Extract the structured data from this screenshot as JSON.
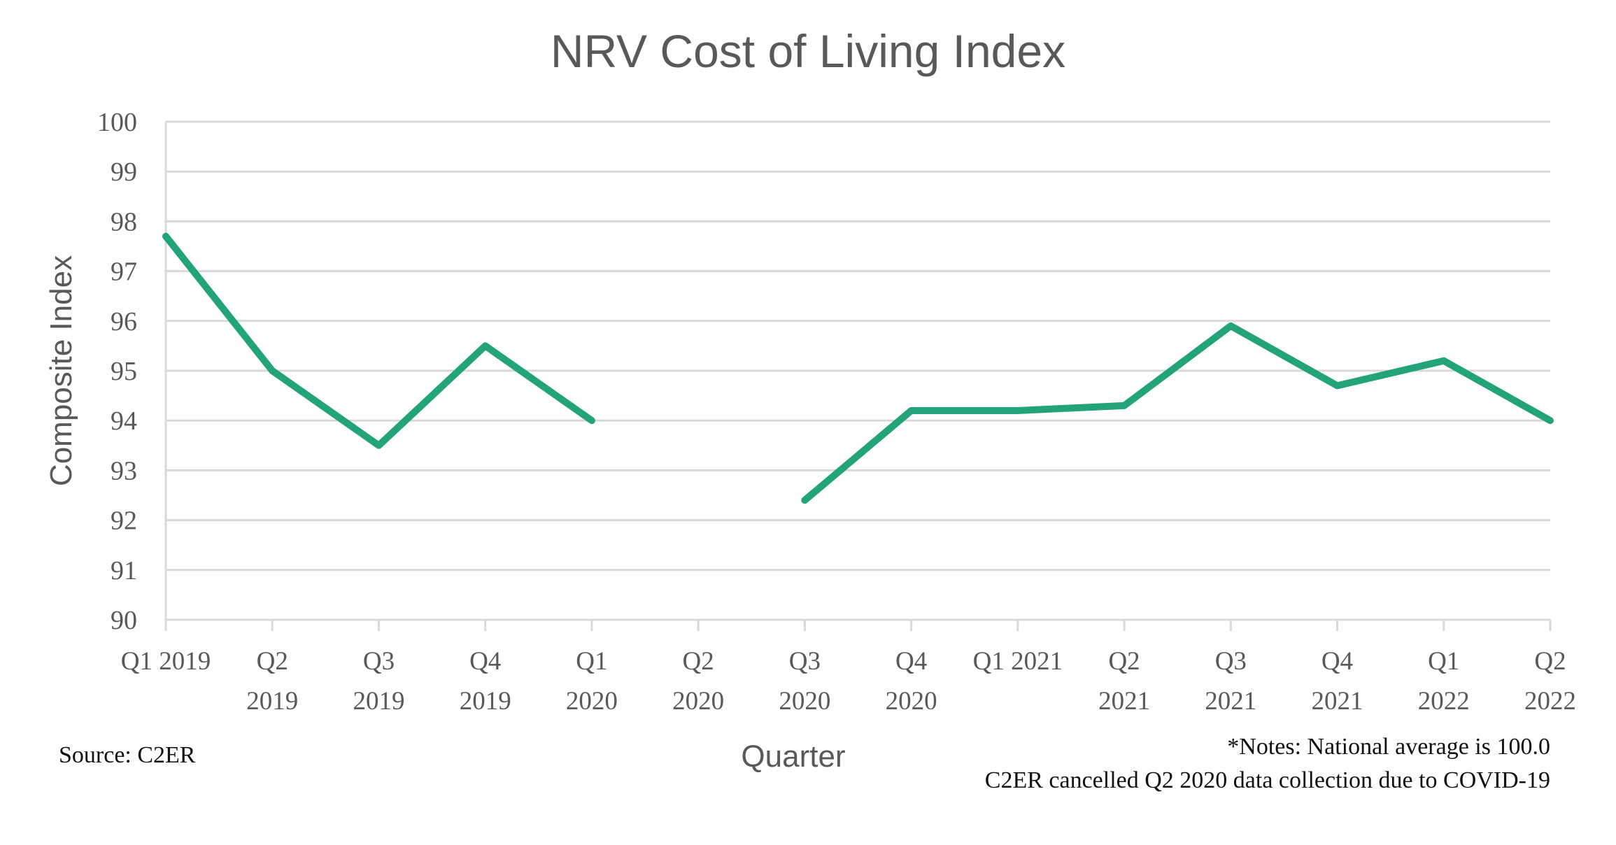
{
  "colors": {
    "line": "#22a37a",
    "grid": "#d9d9d9",
    "text": "#595959",
    "note_text": "#111111"
  },
  "chart_data": {
    "type": "line",
    "title": "NRV Cost of Living Index",
    "xlabel": "Quarter",
    "ylabel": "Composite Index",
    "ylim": [
      90,
      100
    ],
    "yticks": [
      90,
      91,
      92,
      93,
      94,
      95,
      96,
      97,
      98,
      99,
      100
    ],
    "grid": true,
    "legend": "none",
    "categories": [
      [
        "Q1 2019"
      ],
      [
        "Q2",
        "2019"
      ],
      [
        "Q3",
        "2019"
      ],
      [
        "Q4",
        "2019"
      ],
      [
        "Q1",
        "2020"
      ],
      [
        "Q2",
        "2020"
      ],
      [
        "Q3",
        "2020"
      ],
      [
        "Q4",
        "2020"
      ],
      [
        "Q1 2021"
      ],
      [
        "Q2",
        "2021"
      ],
      [
        "Q3",
        "2021"
      ],
      [
        "Q4",
        "2021"
      ],
      [
        "Q1",
        "2022"
      ],
      [
        "Q2",
        "2022"
      ]
    ],
    "series": [
      {
        "name": "Composite Index",
        "values": [
          97.7,
          95.0,
          93.5,
          95.5,
          94.0,
          null,
          92.4,
          94.2,
          94.2,
          94.3,
          95.9,
          94.7,
          95.2,
          94.0
        ]
      }
    ],
    "annotations": {
      "source": "Source: C2ER",
      "notes": [
        "*Notes: National average is 100.0",
        "C2ER cancelled Q2 2020 data collection due to COVID-19"
      ]
    }
  }
}
